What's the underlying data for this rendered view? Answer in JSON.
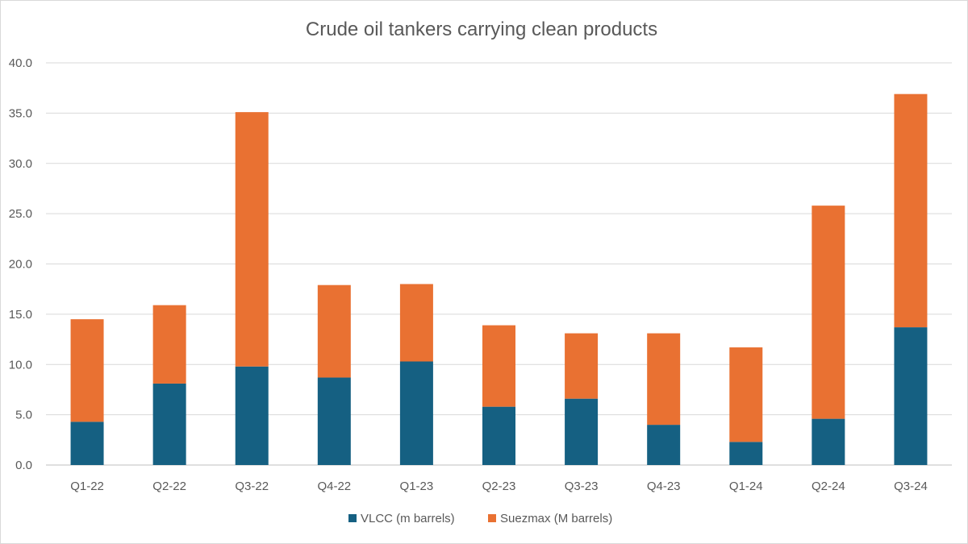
{
  "chart_data": {
    "type": "bar",
    "stacked": true,
    "title": "Crude oil tankers carrying clean products",
    "xlabel": "",
    "ylabel": "",
    "ylim": [
      0,
      40
    ],
    "yticks": [
      "0.0",
      "5.0",
      "10.0",
      "15.0",
      "20.0",
      "25.0",
      "30.0",
      "35.0",
      "40.0"
    ],
    "grid": true,
    "legend_position": "bottom",
    "categories": [
      "Q1-22",
      "Q2-22",
      "Q3-22",
      "Q4-22",
      "Q1-23",
      "Q2-23",
      "Q3-23",
      "Q4-23",
      "Q1-24",
      "Q2-24",
      "Q3-24"
    ],
    "series": [
      {
        "name": "VLCC (m barrels)",
        "color": "#156082",
        "values": [
          4.3,
          8.1,
          9.8,
          8.7,
          10.3,
          5.8,
          6.6,
          4.0,
          2.3,
          4.6,
          13.7
        ]
      },
      {
        "name": "Suezmax (M barrels)",
        "color": "#E97132",
        "values": [
          10.2,
          7.8,
          25.3,
          9.2,
          7.7,
          8.1,
          6.5,
          9.1,
          9.4,
          21.2,
          23.2
        ]
      }
    ]
  }
}
